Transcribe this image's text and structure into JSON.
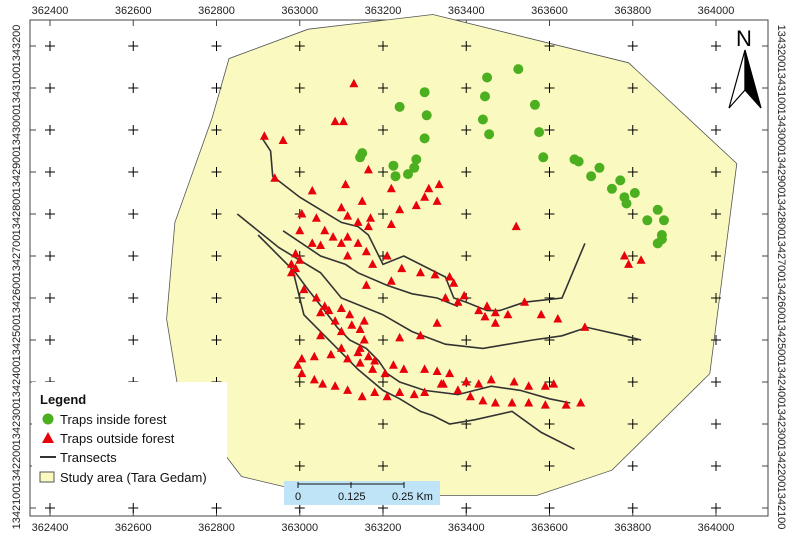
{
  "map": {
    "x_ticks": [
      "362400",
      "362600",
      "362800",
      "363000",
      "363200",
      "363400",
      "363600",
      "363800",
      "364000"
    ],
    "y_ticks": [
      "1343200",
      "1343100",
      "1343000",
      "1342900",
      "1342800",
      "1342700",
      "1342600",
      "1342500",
      "1342400",
      "1342300",
      "1342200",
      "1342100"
    ],
    "x_range": [
      362310,
      364120
    ],
    "y_range": [
      1342060,
      1343290
    ],
    "north_label": "N",
    "colors": {
      "study_area_fill": "#fafac0",
      "study_area_stroke": "#555555",
      "trap_inside": "#4caf1f",
      "trap_outside": "#e8000b",
      "transect": "#333333",
      "scale_bar": "#bfe3f7"
    },
    "study_area": [
      [
        363020,
        1343240
      ],
      [
        363320,
        1343275
      ],
      [
        363790,
        1343160
      ],
      [
        364050,
        1342920
      ],
      [
        363985,
        1342420
      ],
      [
        363750,
        1342190
      ],
      [
        363570,
        1342130
      ],
      [
        363050,
        1342130
      ],
      [
        362860,
        1342175
      ],
      [
        362710,
        1342370
      ],
      [
        362680,
        1342550
      ],
      [
        362700,
        1342780
      ],
      [
        362790,
        1343030
      ],
      [
        362830,
        1343170
      ]
    ],
    "traps_inside": [
      [
        363450,
        1343125
      ],
      [
        363525,
        1343145
      ],
      [
        363300,
        1343090
      ],
      [
        363445,
        1343080
      ],
      [
        363240,
        1343055
      ],
      [
        363565,
        1343060
      ],
      [
        363305,
        1343035
      ],
      [
        363440,
        1343025
      ],
      [
        363150,
        1342945
      ],
      [
        363145,
        1342935
      ],
      [
        363300,
        1342980
      ],
      [
        363575,
        1342995
      ],
      [
        363455,
        1342990
      ],
      [
        363280,
        1342930
      ],
      [
        363225,
        1342915
      ],
      [
        363585,
        1342935
      ],
      [
        363275,
        1342910
      ],
      [
        363660,
        1342930
      ],
      [
        363670,
        1342925
      ],
      [
        363720,
        1342910
      ],
      [
        363700,
        1342890
      ],
      [
        363770,
        1342880
      ],
      [
        363750,
        1342860
      ],
      [
        363805,
        1342850
      ],
      [
        363780,
        1342840
      ],
      [
        363785,
        1342825
      ],
      [
        363860,
        1342810
      ],
      [
        363835,
        1342785
      ],
      [
        363875,
        1342785
      ],
      [
        363870,
        1342750
      ],
      [
        363870,
        1342740
      ],
      [
        363260,
        1342895
      ],
      [
        363230,
        1342890
      ],
      [
        363860,
        1342730
      ]
    ],
    "traps_outside": [
      [
        363130,
        1343110
      ],
      [
        363105,
        1343020
      ],
      [
        363085,
        1343020
      ],
      [
        362915,
        1342985
      ],
      [
        362960,
        1342975
      ],
      [
        363165,
        1342905
      ],
      [
        363275,
        1342915
      ],
      [
        362940,
        1342885
      ],
      [
        363110,
        1342870
      ],
      [
        363030,
        1342855
      ],
      [
        363220,
        1342860
      ],
      [
        363310,
        1342860
      ],
      [
        363335,
        1342870
      ],
      [
        363300,
        1342840
      ],
      [
        363280,
        1342820
      ],
      [
        363330,
        1342830
      ],
      [
        363240,
        1342810
      ],
      [
        363150,
        1342830
      ],
      [
        363220,
        1342775
      ],
      [
        363170,
        1342790
      ],
      [
        363100,
        1342815
      ],
      [
        363140,
        1342780
      ],
      [
        363115,
        1342795
      ],
      [
        363165,
        1342770
      ],
      [
        363005,
        1342800
      ],
      [
        363040,
        1342790
      ],
      [
        363060,
        1342760
      ],
      [
        363000,
        1342760
      ],
      [
        363080,
        1342745
      ],
      [
        363115,
        1342745
      ],
      [
        363140,
        1342730
      ],
      [
        363100,
        1342730
      ],
      [
        363050,
        1342725
      ],
      [
        363030,
        1342730
      ],
      [
        363520,
        1342770
      ],
      [
        363115,
        1342700
      ],
      [
        363175,
        1342680
      ],
      [
        363210,
        1342700
      ],
      [
        363160,
        1342710
      ],
      [
        363245,
        1342670
      ],
      [
        363290,
        1342660
      ],
      [
        363325,
        1342655
      ],
      [
        363360,
        1342650
      ],
      [
        363370,
        1342635
      ],
      [
        363220,
        1342640
      ],
      [
        363160,
        1342630
      ],
      [
        363350,
        1342600
      ],
      [
        363380,
        1342590
      ],
      [
        363395,
        1342605
      ],
      [
        363430,
        1342570
      ],
      [
        363445,
        1342555
      ],
      [
        363470,
        1342565
      ],
      [
        363540,
        1342590
      ],
      [
        363580,
        1342560
      ],
      [
        363620,
        1342550
      ],
      [
        363470,
        1342540
      ],
      [
        363330,
        1342540
      ],
      [
        363290,
        1342510
      ],
      [
        363240,
        1342505
      ],
      [
        363100,
        1342520
      ],
      [
        363050,
        1342510
      ],
      [
        363100,
        1342480
      ],
      [
        363140,
        1342470
      ],
      [
        363165,
        1342460
      ],
      [
        363180,
        1342450
      ],
      [
        363225,
        1342440
      ],
      [
        363250,
        1342430
      ],
      [
        363300,
        1342430
      ],
      [
        363330,
        1342425
      ],
      [
        363360,
        1342420
      ],
      [
        363400,
        1342400
      ],
      [
        363430,
        1342395
      ],
      [
        363460,
        1342405
      ],
      [
        363515,
        1342400
      ],
      [
        363550,
        1342390
      ],
      [
        363590,
        1342390
      ],
      [
        363610,
        1342395
      ],
      [
        363345,
        1342395
      ],
      [
        363300,
        1342375
      ],
      [
        363275,
        1342370
      ],
      [
        363240,
        1342375
      ],
      [
        363210,
        1342365
      ],
      [
        363180,
        1342375
      ],
      [
        363150,
        1342365
      ],
      [
        363115,
        1342380
      ],
      [
        363085,
        1342390
      ],
      [
        363055,
        1342395
      ],
      [
        363035,
        1342405
      ],
      [
        363005,
        1342420
      ],
      [
        362995,
        1342440
      ],
      [
        363005,
        1342455
      ],
      [
        363035,
        1342460
      ],
      [
        363075,
        1342465
      ],
      [
        363115,
        1342455
      ],
      [
        363145,
        1342445
      ],
      [
        363175,
        1342430
      ],
      [
        363205,
        1342420
      ],
      [
        363340,
        1342395
      ],
      [
        363380,
        1342380
      ],
      [
        363410,
        1342365
      ],
      [
        363440,
        1342355
      ],
      [
        363470,
        1342350
      ],
      [
        363510,
        1342350
      ],
      [
        363550,
        1342350
      ],
      [
        363590,
        1342345
      ],
      [
        363640,
        1342345
      ],
      [
        363675,
        1342350
      ],
      [
        362990,
        1342670
      ],
      [
        362980,
        1342680
      ],
      [
        363000,
        1342690
      ],
      [
        362990,
        1342705
      ],
      [
        362980,
        1342660
      ],
      [
        363010,
        1342620
      ],
      [
        363040,
        1342600
      ],
      [
        363060,
        1342580
      ],
      [
        363050,
        1342565
      ],
      [
        363070,
        1342570
      ],
      [
        363100,
        1342575
      ],
      [
        363120,
        1342560
      ],
      [
        363085,
        1342545
      ],
      [
        363125,
        1342535
      ],
      [
        363145,
        1342525
      ],
      [
        363155,
        1342545
      ],
      [
        363155,
        1342500
      ],
      [
        363145,
        1342480
      ],
      [
        363450,
        1342580
      ],
      [
        363500,
        1342560
      ],
      [
        363685,
        1342530
      ],
      [
        363780,
        1342700
      ],
      [
        363790,
        1342680
      ],
      [
        363820,
        1342690
      ]
    ],
    "transects": [
      [
        [
          362910,
          1342980
        ],
        [
          362930,
          1342950
        ],
        [
          362935,
          1342890
        ],
        [
          363000,
          1342840
        ],
        [
          363050,
          1342810
        ],
        [
          363100,
          1342780
        ],
        [
          363140,
          1342770
        ],
        [
          363165,
          1342750
        ],
        [
          363200,
          1342680
        ],
        [
          363250,
          1342700
        ],
        [
          363310,
          1342670
        ],
        [
          363350,
          1342650
        ],
        [
          363370,
          1342600
        ],
        [
          363400,
          1342590
        ],
        [
          363450,
          1342570
        ],
        [
          363480,
          1342570
        ],
        [
          363540,
          1342590
        ],
        [
          363630,
          1342600
        ],
        [
          363685,
          1342730
        ]
      ],
      [
        [
          362850,
          1342800
        ],
        [
          362950,
          1342720
        ],
        [
          363050,
          1342660
        ],
        [
          363100,
          1342600
        ],
        [
          363200,
          1342560
        ],
        [
          363270,
          1342520
        ],
        [
          363350,
          1342490
        ],
        [
          363440,
          1342480
        ],
        [
          363500,
          1342490
        ],
        [
          363560,
          1342500
        ],
        [
          363630,
          1342510
        ],
        [
          363690,
          1342530
        ],
        [
          363780,
          1342510
        ],
        [
          363820,
          1342500
        ]
      ],
      [
        [
          362960,
          1342760
        ],
        [
          363050,
          1342700
        ],
        [
          363110,
          1342680
        ],
        [
          363140,
          1342660
        ],
        [
          363210,
          1342630
        ],
        [
          363270,
          1342610
        ],
        [
          363330,
          1342600
        ],
        [
          363380,
          1342580
        ]
      ],
      [
        [
          362900,
          1342750
        ],
        [
          362990,
          1342660
        ],
        [
          363020,
          1342620
        ],
        [
          363060,
          1342570
        ],
        [
          363090,
          1342530
        ],
        [
          363120,
          1342500
        ],
        [
          363160,
          1342480
        ],
        [
          363190,
          1342450
        ],
        [
          363210,
          1342420
        ],
        [
          363240,
          1342400
        ],
        [
          363300,
          1342380
        ],
        [
          363380,
          1342370
        ],
        [
          363460,
          1342390
        ],
        [
          363530,
          1342380
        ],
        [
          363600,
          1342360
        ],
        [
          363650,
          1342350
        ]
      ],
      [
        [
          362985,
          1342660
        ],
        [
          363010,
          1342560
        ],
        [
          363060,
          1342510
        ],
        [
          363100,
          1342470
        ],
        [
          363140,
          1342430
        ],
        [
          363200,
          1342380
        ],
        [
          363240,
          1342360
        ],
        [
          363290,
          1342330
        ],
        [
          363320,
          1342320
        ],
        [
          363360,
          1342300
        ],
        [
          363420,
          1342310
        ],
        [
          363510,
          1342330
        ],
        [
          363580,
          1342280
        ],
        [
          363660,
          1342240
        ]
      ]
    ],
    "scale": {
      "labels": [
        "0",
        "0.125",
        "0.25 Km"
      ]
    },
    "legend": {
      "title": "Legend",
      "items": [
        {
          "label": "Traps inside forest",
          "symbol": "circle"
        },
        {
          "label": "Traps outside forest",
          "symbol": "triangle"
        },
        {
          "label": "Transects",
          "symbol": "line"
        },
        {
          "label": "Study area (Tara Gedam)",
          "symbol": "box"
        }
      ]
    }
  }
}
